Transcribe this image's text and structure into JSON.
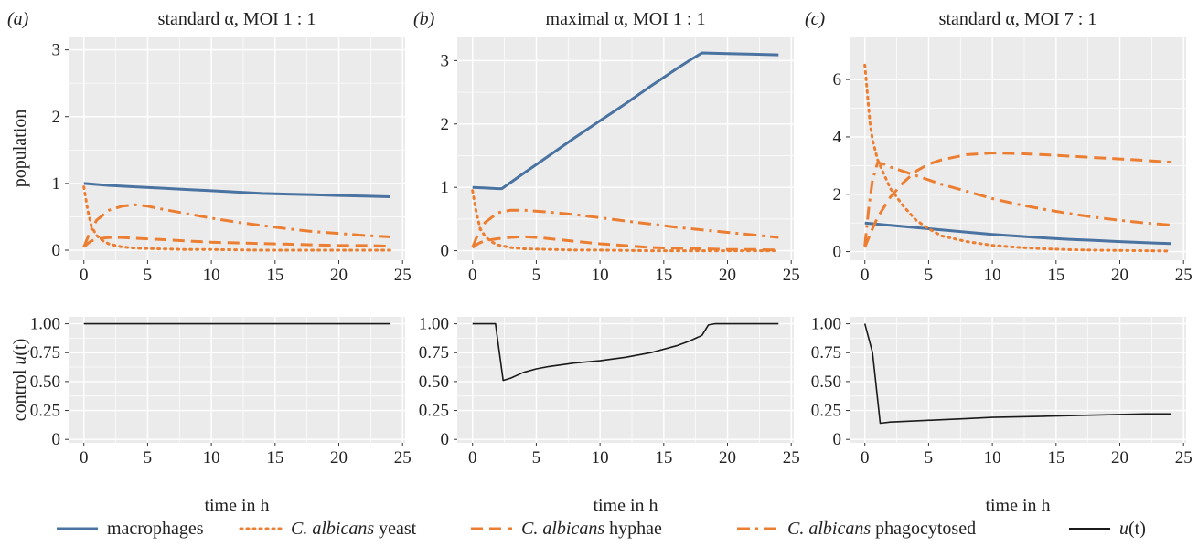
{
  "figure": {
    "panel_tags": [
      "(a)",
      "(b)",
      "(c)"
    ],
    "ylabel_top": "population",
    "ylabel_bottom": "control u(t)",
    "legend": {
      "position": "bottom",
      "entries": [
        "macrophages",
        "C. albicans yeast",
        "C. albicans hyphae",
        "C. albicans phagocytosed",
        "u(t)"
      ]
    }
  },
  "colors": {
    "macrophages": "#4a73a1",
    "candida": "#ec7e32",
    "control": "#1a1a1a",
    "panel_bg": "#ebebeb",
    "grid": "#ffffff"
  },
  "chart_data": [
    {
      "type": "line",
      "panel": "a",
      "title": "standard α, MOI 1 : 1",
      "xlabel": "",
      "ylabel": "population",
      "xlim": [
        -1.2,
        25.2
      ],
      "ylim": [
        -0.15,
        3.2
      ],
      "xticks": [
        0,
        5,
        10,
        15,
        20,
        25
      ],
      "yticks": [
        0,
        1,
        2,
        3
      ],
      "series": [
        {
          "name": "macrophages",
          "style": "solid",
          "x": [
            0,
            2,
            4,
            6,
            8,
            10,
            12,
            14,
            16,
            18,
            20,
            22,
            24
          ],
          "y": [
            1.0,
            0.97,
            0.95,
            0.93,
            0.91,
            0.89,
            0.87,
            0.85,
            0.84,
            0.83,
            0.82,
            0.81,
            0.8
          ]
        },
        {
          "name": "C. albicans yeast",
          "style": "dotted",
          "x": [
            0,
            0.3,
            0.6,
            1,
            1.5,
            2,
            3,
            4,
            6,
            8,
            10,
            14,
            18,
            24
          ],
          "y": [
            0.95,
            0.6,
            0.35,
            0.22,
            0.14,
            0.09,
            0.05,
            0.03,
            0.02,
            0.01,
            0.01,
            0.0,
            0.0,
            0.0
          ]
        },
        {
          "name": "C. albicans hyphae",
          "style": "dashed",
          "x": [
            0,
            0.5,
            1,
            2,
            3,
            4,
            6,
            8,
            10,
            12,
            14,
            16,
            18,
            20,
            22,
            24
          ],
          "y": [
            0.05,
            0.13,
            0.17,
            0.19,
            0.19,
            0.18,
            0.16,
            0.14,
            0.12,
            0.11,
            0.1,
            0.09,
            0.08,
            0.07,
            0.07,
            0.06
          ]
        },
        {
          "name": "C. albicans phagocytosed",
          "style": "dashdot",
          "x": [
            0,
            0.5,
            1,
            2,
            3,
            4,
            5,
            6,
            8,
            10,
            12,
            14,
            16,
            18,
            20,
            22,
            24
          ],
          "y": [
            0.05,
            0.28,
            0.45,
            0.6,
            0.66,
            0.68,
            0.66,
            0.62,
            0.55,
            0.48,
            0.42,
            0.37,
            0.32,
            0.28,
            0.25,
            0.22,
            0.2
          ]
        }
      ]
    },
    {
      "type": "line",
      "panel": "b",
      "title": "maximal α, MOI 1 : 1",
      "xlabel": "",
      "ylabel": "",
      "xlim": [
        -1.2,
        25.2
      ],
      "ylim": [
        -0.15,
        3.38
      ],
      "xticks": [
        0,
        5,
        10,
        15,
        20,
        25
      ],
      "yticks": [
        0,
        1,
        2,
        3
      ],
      "series": [
        {
          "name": "macrophages",
          "style": "solid",
          "x": [
            0,
            1,
            2,
            2.3,
            4,
            6,
            8,
            10,
            12,
            14,
            16,
            17,
            18,
            20,
            22,
            24
          ],
          "y": [
            1.0,
            0.99,
            0.98,
            0.98,
            1.22,
            1.5,
            1.78,
            2.05,
            2.32,
            2.6,
            2.87,
            3.0,
            3.12,
            3.11,
            3.1,
            3.09
          ]
        },
        {
          "name": "C. albicans yeast",
          "style": "dotted",
          "x": [
            0,
            0.3,
            0.6,
            1,
            1.5,
            2,
            3,
            4,
            6,
            8,
            10,
            14,
            18,
            24
          ],
          "y": [
            0.95,
            0.6,
            0.35,
            0.22,
            0.14,
            0.09,
            0.05,
            0.03,
            0.02,
            0.01,
            0.01,
            0.0,
            0.0,
            0.0
          ]
        },
        {
          "name": "C. albicans hyphae",
          "style": "dashed",
          "x": [
            0,
            0.5,
            1,
            2,
            3,
            4,
            5,
            6,
            8,
            10,
            12,
            14,
            16,
            18,
            20,
            22,
            24
          ],
          "y": [
            0.05,
            0.12,
            0.16,
            0.19,
            0.21,
            0.22,
            0.21,
            0.19,
            0.15,
            0.11,
            0.08,
            0.05,
            0.04,
            0.03,
            0.02,
            0.02,
            0.01
          ]
        },
        {
          "name": "C. albicans phagocytosed",
          "style": "dashdot",
          "x": [
            0,
            0.5,
            1,
            2,
            3,
            4,
            6,
            8,
            10,
            12,
            14,
            16,
            18,
            20,
            22,
            24
          ],
          "y": [
            0.05,
            0.3,
            0.45,
            0.6,
            0.64,
            0.64,
            0.61,
            0.57,
            0.52,
            0.47,
            0.42,
            0.37,
            0.33,
            0.29,
            0.25,
            0.21
          ]
        }
      ]
    },
    {
      "type": "line",
      "panel": "c",
      "title": "standard α, MOI 7 : 1",
      "xlabel": "",
      "ylabel": "",
      "xlim": [
        -1.2,
        25.2
      ],
      "ylim": [
        -0.3,
        7.5
      ],
      "xticks": [
        0,
        5,
        10,
        15,
        20,
        25
      ],
      "yticks": [
        0,
        2,
        4,
        6
      ],
      "series": [
        {
          "name": "macrophages",
          "style": "solid",
          "x": [
            0,
            2,
            4,
            6,
            8,
            10,
            12,
            14,
            16,
            18,
            20,
            22,
            24
          ],
          "y": [
            1.0,
            0.92,
            0.84,
            0.76,
            0.68,
            0.6,
            0.54,
            0.48,
            0.43,
            0.39,
            0.35,
            0.31,
            0.28
          ]
        },
        {
          "name": "C. albicans yeast",
          "style": "dotted",
          "x": [
            0,
            0.2,
            0.4,
            0.6,
            1,
            1.5,
            2,
            3,
            4,
            5,
            6,
            8,
            10,
            12,
            14,
            16,
            18,
            20,
            22,
            24
          ],
          "y": [
            6.5,
            5.5,
            4.5,
            3.9,
            3.2,
            2.7,
            2.2,
            1.6,
            1.1,
            0.8,
            0.55,
            0.35,
            0.22,
            0.15,
            0.1,
            0.07,
            0.05,
            0.04,
            0.03,
            0.02
          ]
        },
        {
          "name": "C. albicans hyphae",
          "style": "dashed",
          "x": [
            0,
            0.5,
            1,
            2,
            3,
            4,
            5,
            6,
            8,
            10,
            12,
            14,
            16,
            18,
            20,
            22,
            24
          ],
          "y": [
            0.15,
            0.7,
            1.2,
            1.9,
            2.4,
            2.8,
            3.05,
            3.2,
            3.38,
            3.44,
            3.42,
            3.38,
            3.33,
            3.28,
            3.23,
            3.18,
            3.12
          ]
        },
        {
          "name": "C. albicans phagocytosed",
          "style": "dashdot",
          "x": [
            0,
            0.3,
            0.6,
            1,
            1.5,
            2,
            3,
            4,
            6,
            8,
            10,
            12,
            14,
            16,
            18,
            20,
            22,
            24
          ],
          "y": [
            0.2,
            1.5,
            2.5,
            3.1,
            3.05,
            2.95,
            2.8,
            2.65,
            2.35,
            2.1,
            1.85,
            1.65,
            1.48,
            1.33,
            1.2,
            1.09,
            1.0,
            0.93
          ]
        }
      ]
    },
    {
      "type": "line",
      "panel": "a-control",
      "title": "",
      "xlabel": "time in h",
      "ylabel": "control u(t)",
      "xlim": [
        -1.2,
        25.2
      ],
      "ylim": [
        -0.03,
        1.06
      ],
      "xticks": [
        0,
        5,
        10,
        15,
        20,
        25
      ],
      "yticks": [
        0,
        0.25,
        0.5,
        0.75,
        1.0
      ],
      "ytick_labels": [
        "0",
        "0.25",
        "0.50",
        "0.75",
        "1.00"
      ],
      "series": [
        {
          "name": "u(t)",
          "style": "solid",
          "x": [
            0,
            24
          ],
          "y": [
            1.0,
            1.0
          ]
        }
      ]
    },
    {
      "type": "line",
      "panel": "b-control",
      "title": "",
      "xlabel": "time in h",
      "ylabel": "",
      "xlim": [
        -1.2,
        25.2
      ],
      "ylim": [
        -0.03,
        1.06
      ],
      "xticks": [
        0,
        5,
        10,
        15,
        20,
        25
      ],
      "yticks": [
        0,
        0.25,
        0.5,
        0.75,
        1.0
      ],
      "ytick_labels": [
        "0",
        "0.25",
        "0.50",
        "0.75",
        "1.00"
      ],
      "series": [
        {
          "name": "u(t)",
          "style": "solid",
          "x": [
            0,
            1.8,
            2.4,
            3,
            4,
            5,
            6,
            8,
            10,
            12,
            14,
            16,
            17,
            18,
            18.5,
            19,
            20,
            22,
            24
          ],
          "y": [
            1.0,
            1.0,
            0.51,
            0.53,
            0.58,
            0.61,
            0.63,
            0.66,
            0.68,
            0.71,
            0.75,
            0.81,
            0.85,
            0.9,
            0.99,
            1.0,
            1.0,
            1.0,
            1.0
          ]
        }
      ]
    },
    {
      "type": "line",
      "panel": "c-control",
      "title": "",
      "xlabel": "time in h",
      "ylabel": "",
      "xlim": [
        -1.2,
        25.2
      ],
      "ylim": [
        -0.03,
        1.06
      ],
      "xticks": [
        0,
        5,
        10,
        15,
        20,
        25
      ],
      "yticks": [
        0,
        0.25,
        0.5,
        0.75,
        1.0
      ],
      "ytick_labels": [
        "0",
        "0.25",
        "0.50",
        "0.75",
        "1.00"
      ],
      "series": [
        {
          "name": "u(t)",
          "style": "solid",
          "x": [
            0,
            0.6,
            1.2,
            2,
            4,
            6,
            8,
            10,
            14,
            18,
            22,
            24
          ],
          "y": [
            1.0,
            0.75,
            0.14,
            0.15,
            0.16,
            0.17,
            0.18,
            0.19,
            0.2,
            0.21,
            0.22,
            0.22
          ]
        }
      ]
    }
  ]
}
